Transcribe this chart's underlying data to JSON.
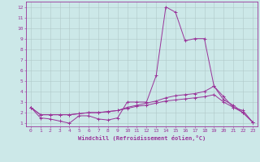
{
  "xlabel": "Windchill (Refroidissement éolien,°C)",
  "x_values": [
    0,
    1,
    2,
    3,
    4,
    5,
    6,
    7,
    8,
    9,
    10,
    11,
    12,
    13,
    14,
    15,
    16,
    17,
    18,
    19,
    20,
    21,
    22,
    23
  ],
  "line1": [
    2.5,
    1.5,
    1.4,
    1.2,
    1.0,
    1.7,
    1.7,
    1.4,
    1.3,
    1.5,
    3.0,
    3.0,
    3.0,
    5.5,
    12.0,
    11.5,
    8.8,
    9.0,
    9.0,
    4.5,
    3.2,
    2.7,
    2.0,
    1.1
  ],
  "line2": [
    2.5,
    1.8,
    1.8,
    1.8,
    1.8,
    1.9,
    2.0,
    2.0,
    2.1,
    2.2,
    2.5,
    2.7,
    2.9,
    3.1,
    3.4,
    3.6,
    3.7,
    3.8,
    4.0,
    4.5,
    3.5,
    2.5,
    2.2,
    1.1
  ],
  "line3": [
    2.5,
    1.8,
    1.8,
    1.8,
    1.8,
    1.9,
    2.0,
    2.0,
    2.1,
    2.2,
    2.4,
    2.6,
    2.7,
    2.9,
    3.1,
    3.2,
    3.3,
    3.4,
    3.5,
    3.7,
    3.0,
    2.5,
    2.0,
    1.1
  ],
  "line_color": "#993399",
  "bg_color": "#cce8e8",
  "grid_color": "#b0c8c8",
  "ylim": [
    0.7,
    12.5
  ],
  "xlim": [
    -0.5,
    23.5
  ],
  "yticks": [
    1,
    2,
    3,
    4,
    5,
    6,
    7,
    8,
    9,
    10,
    11,
    12
  ],
  "xticks": [
    0,
    1,
    2,
    3,
    4,
    5,
    6,
    7,
    8,
    9,
    10,
    11,
    12,
    13,
    14,
    15,
    16,
    17,
    18,
    19,
    20,
    21,
    22,
    23
  ],
  "tick_fontsize": 4.5,
  "xlabel_fontsize": 5.0,
  "linewidth": 0.7,
  "markersize": 2.5
}
